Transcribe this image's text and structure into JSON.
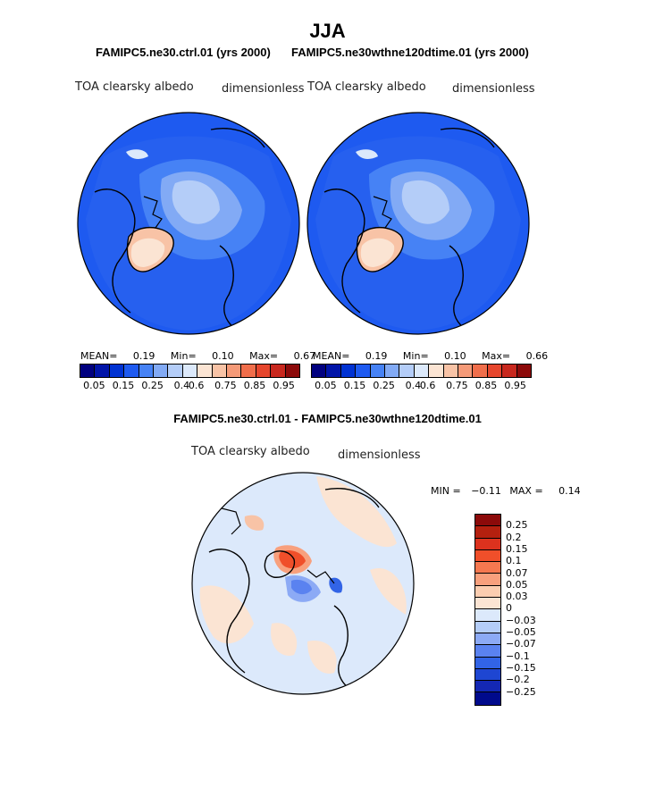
{
  "title": "JJA",
  "runs": {
    "left": "FAMIPC5.ne30.ctrl.01 (yrs 2000)",
    "right": "FAMIPC5.ne30wthne120dtime.01 (yrs 2000)"
  },
  "panel_left": {
    "variable": "TOA clearsky albedo",
    "units": "dimensionless",
    "mean_label": "MEAN=",
    "mean": "0.19",
    "min_label": "Min=",
    "min": "0.10",
    "max_label": "Max=",
    "max": "0.67"
  },
  "panel_right": {
    "variable": "TOA clearsky albedo",
    "units": "dimensionless",
    "mean_label": "MEAN=",
    "mean": "0.19",
    "min_label": "Min=",
    "min": "0.10",
    "max_label": "Max=",
    "max": "0.66"
  },
  "diff": {
    "title": "FAMIPC5.ne30.ctrl.01 - FAMIPC5.ne30wthne120dtime.01",
    "variable": "TOA clearsky albedo",
    "units": "dimensionless",
    "min_label": "MIN =",
    "min": "−0.11",
    "max_label": "MAX =",
    "max": "0.14"
  },
  "colorbar_abs": {
    "colors": [
      "#00007f",
      "#0014a8",
      "#0032d2",
      "#1e5af0",
      "#4682f5",
      "#82aaf5",
      "#b4cdf8",
      "#dce9fb",
      "#fbe4d3",
      "#f8c3a6",
      "#f59a78",
      "#f06e4b",
      "#e6462d",
      "#c8281e",
      "#8c0a0a"
    ],
    "ticks": [
      "0.05",
      "0.15",
      "0.25",
      "0.4",
      "0.6",
      "0.75",
      "0.85",
      "0.95"
    ]
  },
  "colorbar_diff": {
    "colors": [
      "#8c0a0a",
      "#b4200f",
      "#dc321e",
      "#f04f2a",
      "#f57850",
      "#f8a07d",
      "#fbcdb0",
      "#fbe4d3",
      "#dce9fb",
      "#b4cdf8",
      "#8caaf5",
      "#5a82f0",
      "#3264e6",
      "#1e46d2",
      "#1428b4",
      "#000a8c"
    ],
    "ticks": [
      "0.25",
      "0.2",
      "0.15",
      "0.1",
      "0.07",
      "0.05",
      "0.03",
      "0",
      "−0.03",
      "−0.05",
      "−0.07",
      "−0.1",
      "−0.15",
      "−0.2",
      "−0.25"
    ]
  }
}
